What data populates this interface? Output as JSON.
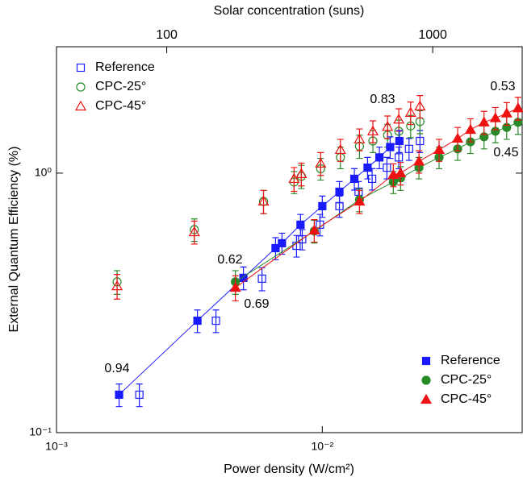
{
  "chart_data": {
    "type": "scatter",
    "xlabel": "Power density (W/cm²)",
    "x2label": "Solar concentration (suns)",
    "ylabel": "External Quantum Efficiency (%)",
    "xscale": "log",
    "yscale": "log",
    "x2scale": "log",
    "xlim": [
      0.001,
      0.0565
    ],
    "xticks": [
      {
        "value": 0.001,
        "label": "10⁻³"
      },
      {
        "value": 0.01,
        "label": "10⁻²"
      }
    ],
    "x2lim": [
      38.5,
      2170
    ],
    "x2ticks": [
      100,
      1000
    ],
    "ylim": [
      0.1,
      3.07
    ],
    "yticks": [
      {
        "value": 0.1,
        "label": "10⁻¹"
      },
      {
        "value": 1,
        "label": "10⁰"
      }
    ],
    "annotations": [
      "0.94",
      "0.62",
      "0.69",
      "0.83",
      "0.53",
      "0.45"
    ],
    "series": [
      {
        "name": "Reference",
        "color": "#1a1aff",
        "marker": "square",
        "filled": false,
        "line": false,
        "legend": "upper left",
        "x": [
          0.00205,
          0.00398,
          0.00593,
          0.008,
          0.0084,
          0.0098,
          0.0116,
          0.0137,
          0.0154,
          0.0175,
          0.0194,
          0.0212,
          0.0233
        ],
        "values": [
          0.14,
          0.27,
          0.392,
          0.525,
          0.556,
          0.633,
          0.746,
          0.848,
          0.951,
          1.05,
          1.15,
          1.24,
          1.33
        ],
        "errors": [
          0.014,
          0.027,
          0.04,
          0.05,
          0.05,
          0.06,
          0.07,
          0.08,
          0.09,
          0.1,
          0.11,
          0.12,
          0.13
        ]
      },
      {
        "name": "CPC-25°",
        "color": "#2a8a2a",
        "marker": "circle",
        "filled": false,
        "line": false,
        "legend": "upper left",
        "x": [
          0.00169,
          0.0033,
          0.00601,
          0.00783,
          0.00834,
          0.00986,
          0.0117,
          0.0138,
          0.0155,
          0.0176,
          0.0194,
          0.0215,
          0.0233
        ],
        "values": [
          0.381,
          0.606,
          0.778,
          0.924,
          0.972,
          1.04,
          1.15,
          1.27,
          1.33,
          1.4,
          1.45,
          1.52,
          1.58
        ],
        "errors": [
          0.04,
          0.06,
          0.08,
          0.09,
          0.1,
          0.1,
          0.11,
          0.13,
          0.13,
          0.14,
          0.15,
          0.15,
          0.16
        ]
      },
      {
        "name": "CPC-45°",
        "color": "#ee1111",
        "marker": "triangle",
        "filled": false,
        "line": false,
        "legend": "upper left",
        "x": [
          0.00169,
          0.0033,
          0.00601,
          0.00783,
          0.00834,
          0.00986,
          0.0117,
          0.0138,
          0.0155,
          0.0176,
          0.0194,
          0.0215,
          0.0233
        ],
        "values": [
          0.367,
          0.593,
          0.778,
          0.951,
          0.993,
          1.09,
          1.23,
          1.35,
          1.45,
          1.51,
          1.61,
          1.71,
          1.81
        ],
        "errors": [
          0.04,
          0.06,
          0.08,
          0.1,
          0.1,
          0.11,
          0.12,
          0.13,
          0.14,
          0.15,
          0.16,
          0.17,
          0.18
        ]
      },
      {
        "name": "Reference",
        "color": "#1a1aff",
        "marker": "square",
        "filled": true,
        "line": true,
        "legend": "lower right",
        "x": [
          0.00172,
          0.00339,
          0.00505,
          0.00667,
          0.00705,
          0.00828,
          0.01,
          0.0116,
          0.0132,
          0.0148,
          0.0164,
          0.018,
          0.0195
        ],
        "values": [
          0.14,
          0.27,
          0.395,
          0.514,
          0.537,
          0.633,
          0.746,
          0.848,
          0.951,
          1.05,
          1.15,
          1.26,
          1.33
        ],
        "errors": [
          0.014,
          0.027,
          0.04,
          0.05,
          0.05,
          0.06,
          0.07,
          0.08,
          0.09,
          0.1,
          0.11,
          0.12,
          0.13
        ]
      },
      {
        "name": "CPC-25°",
        "color": "#2a8a2a",
        "marker": "circle",
        "filled": true,
        "line": true,
        "legend": "lower right",
        "x": [
          0.00471,
          0.00933,
          0.0138,
          0.0185,
          0.0197,
          0.0231,
          0.0275,
          0.0323,
          0.0361,
          0.0406,
          0.0448,
          0.0494,
          0.0545
        ],
        "values": [
          0.381,
          0.598,
          0.79,
          0.924,
          0.958,
          1.05,
          1.15,
          1.24,
          1.32,
          1.38,
          1.45,
          1.5,
          1.57
        ],
        "errors": [
          0.04,
          0.06,
          0.08,
          0.09,
          0.1,
          0.1,
          0.11,
          0.12,
          0.13,
          0.14,
          0.14,
          0.15,
          0.16
        ]
      },
      {
        "name": "CPC-45°",
        "color": "#ee1111",
        "marker": "triangle",
        "filled": true,
        "line": true,
        "legend": "lower right",
        "x": [
          0.00471,
          0.00933,
          0.0138,
          0.0185,
          0.0197,
          0.0231,
          0.0275,
          0.0323,
          0.0361,
          0.0406,
          0.0448,
          0.0494,
          0.0545
        ],
        "values": [
          0.362,
          0.602,
          0.778,
          0.986,
          1.0,
          1.11,
          1.23,
          1.36,
          1.47,
          1.57,
          1.63,
          1.7,
          1.78
        ],
        "errors": [
          0.04,
          0.06,
          0.08,
          0.1,
          0.1,
          0.11,
          0.12,
          0.14,
          0.15,
          0.16,
          0.16,
          0.17,
          0.18
        ]
      }
    ]
  }
}
